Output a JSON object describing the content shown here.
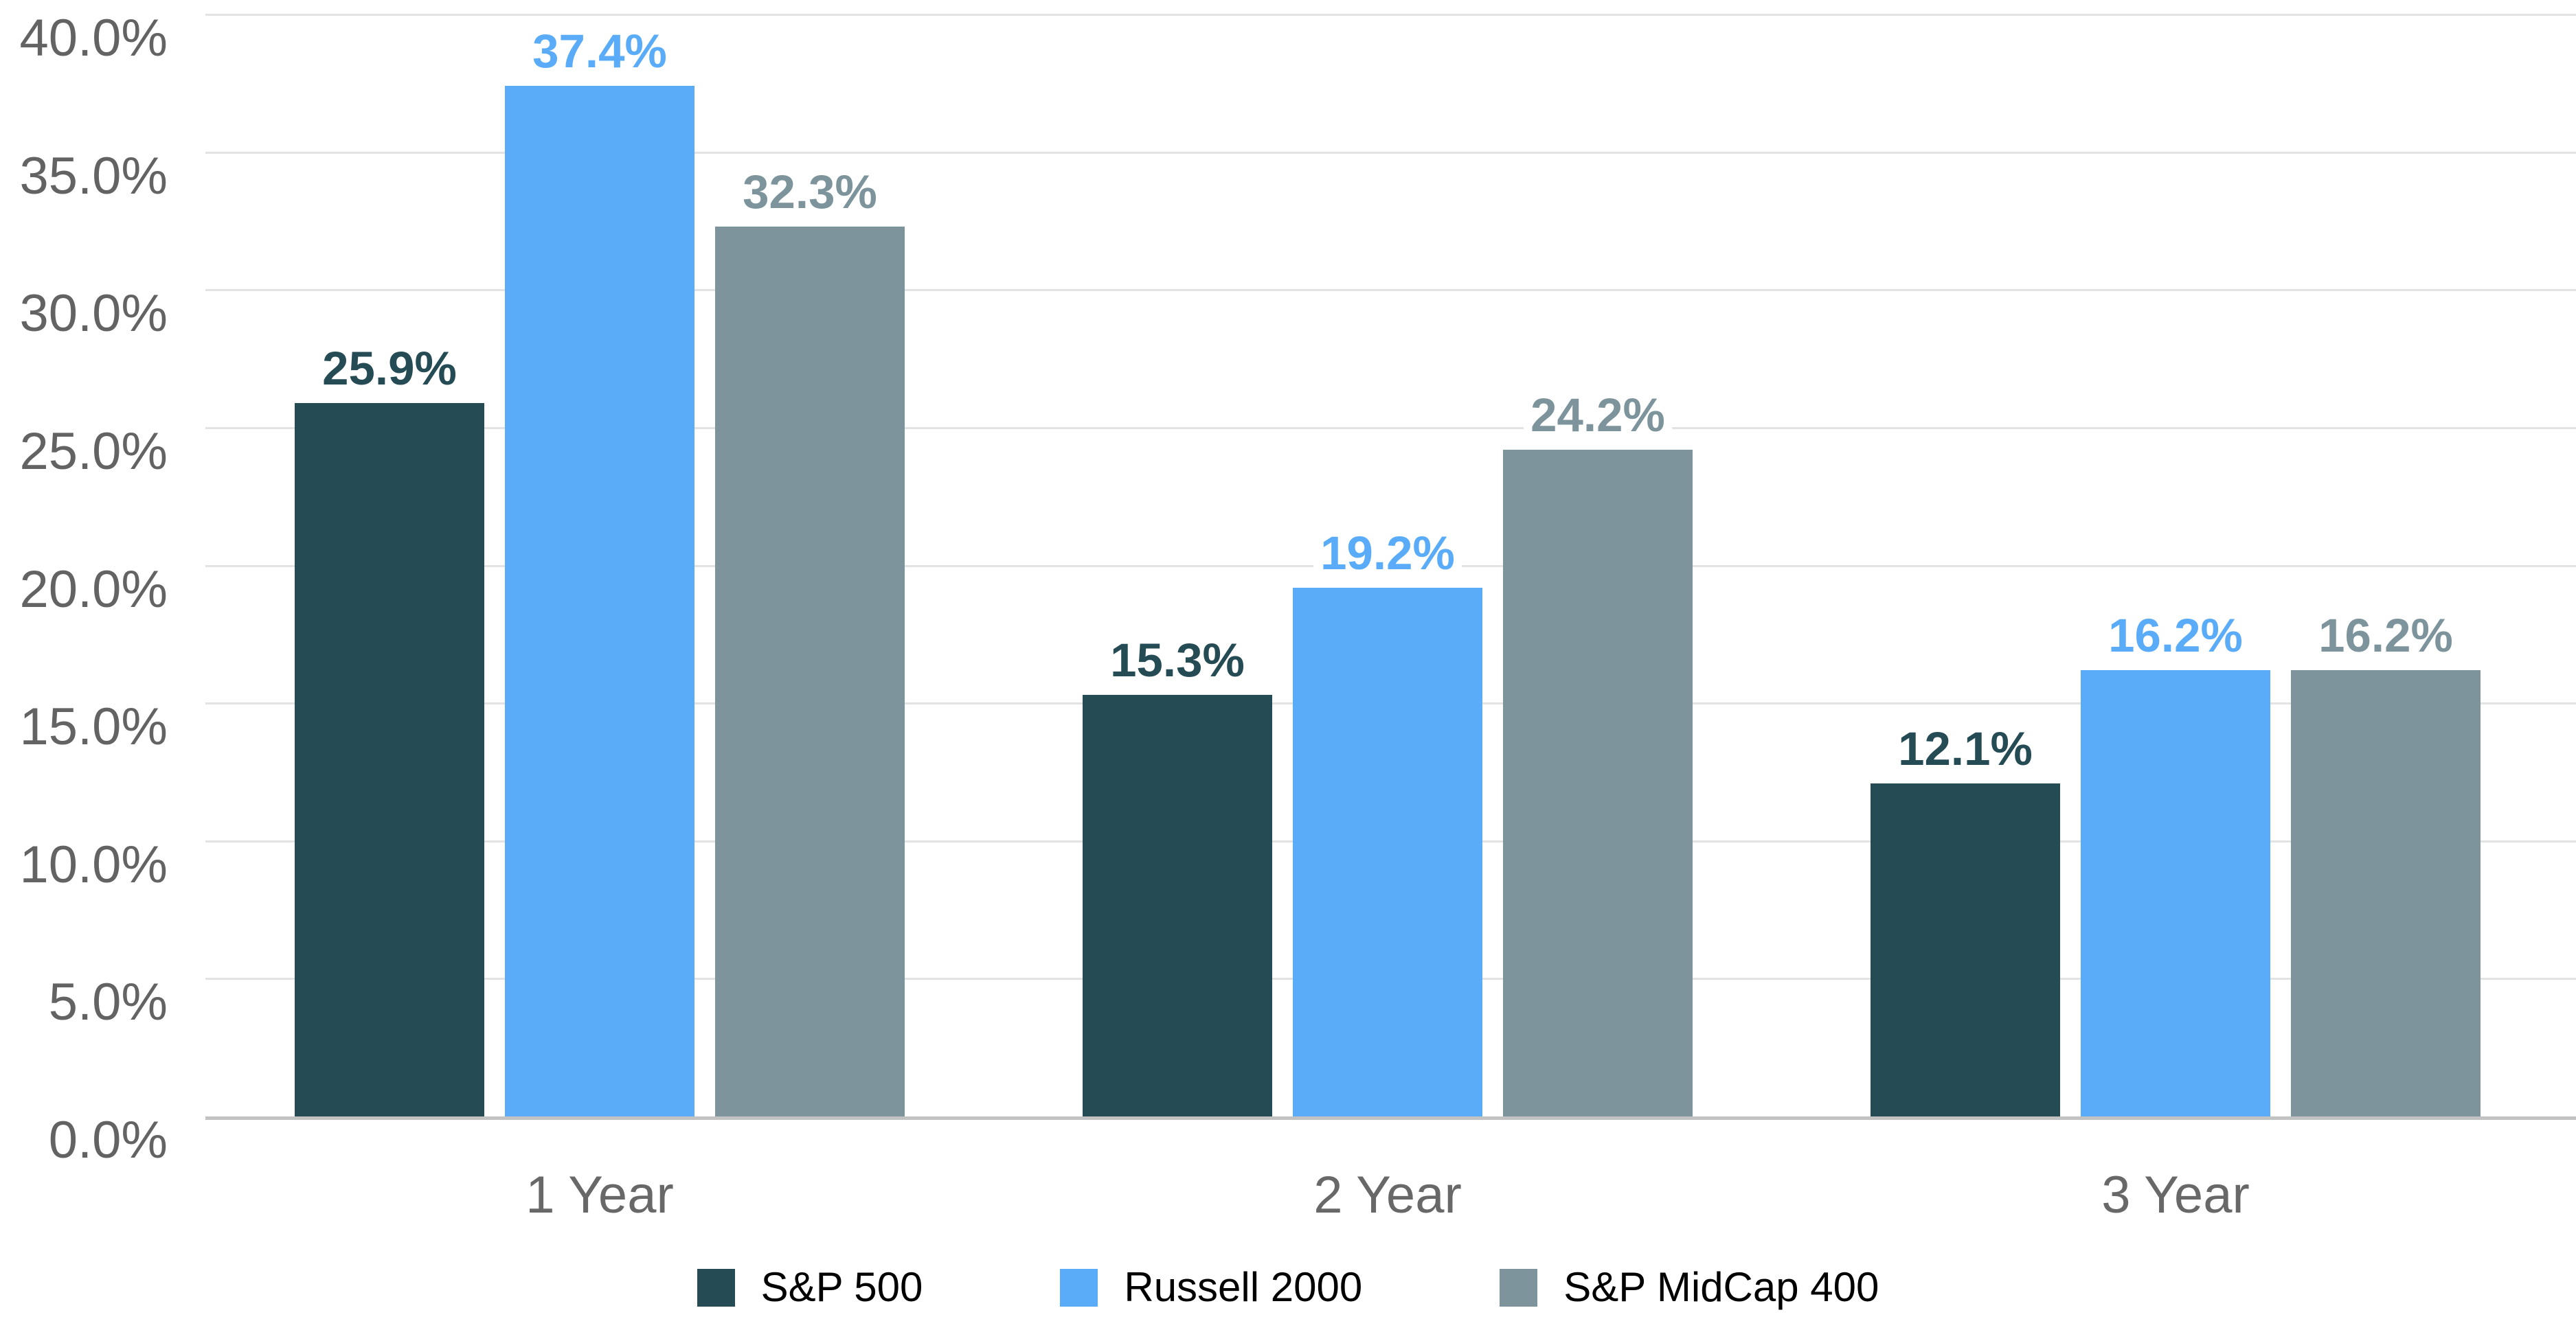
{
  "chart_data": {
    "type": "bar",
    "title": "",
    "categories": [
      "1 Year",
      "2 Year",
      "3 Year"
    ],
    "series": [
      {
        "name": "S&P 500",
        "color": "#254B55",
        "values": [
          25.9,
          15.3,
          12.1
        ],
        "value_labels": [
          "25.9%",
          "15.3%",
          "12.1%"
        ]
      },
      {
        "name": "Russell 2000",
        "color": "#5AACF8",
        "values": [
          37.4,
          19.2,
          16.2
        ],
        "value_labels": [
          "37.4%",
          "19.2%",
          "16.2%"
        ]
      },
      {
        "name": "S&P MidCap 400",
        "color": "#7D949C",
        "values": [
          32.3,
          24.2,
          16.2
        ],
        "value_labels": [
          "32.3%",
          "24.2%",
          "16.2%"
        ]
      }
    ],
    "y_axis": {
      "min": 0,
      "max": 40,
      "step": 5,
      "format": "percent",
      "ticks": [
        "0.0%",
        "5.0%",
        "10.0%",
        "15.0%",
        "20.0%",
        "25.0%",
        "30.0%",
        "35.0%",
        "40.0%"
      ]
    },
    "grid": true,
    "legend_position": "bottom",
    "colors": {
      "gridline": "#E3E3E3",
      "axis_line": "#C2C2C2",
      "y_tick_label": "#636363",
      "x_tick_label": "#686868",
      "legend_text": "#000000"
    }
  }
}
